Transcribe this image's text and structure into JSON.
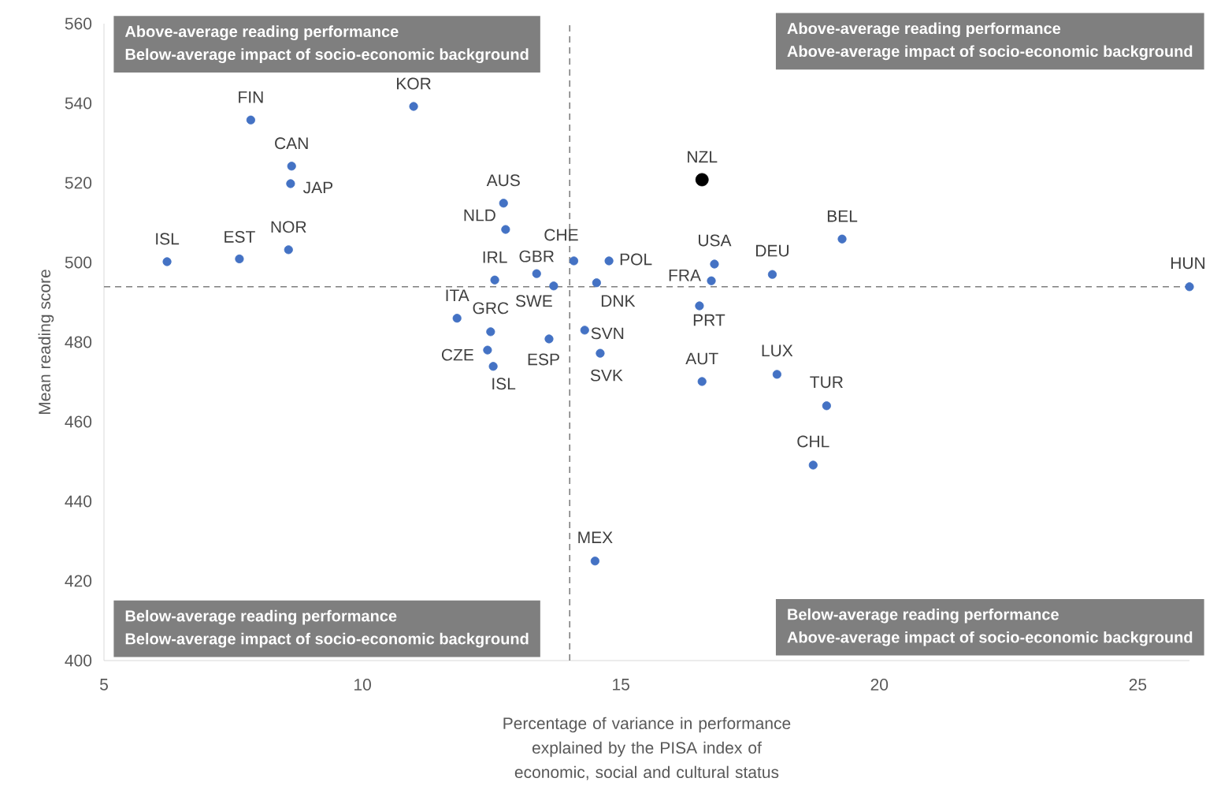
{
  "chart_data": {
    "type": "scatter",
    "xlabel": "Percentage of variance in performance explained by the PISA index of economic, social and cultural status",
    "ylabel": "Mean reading score",
    "xlim": [
      5,
      26
    ],
    "xticks": [
      5,
      10,
      15,
      20,
      25
    ],
    "ylim": [
      400,
      560
    ],
    "yticks": [
      400,
      420,
      440,
      460,
      480,
      500,
      520,
      540,
      560
    ],
    "grid": false,
    "marker": "circle",
    "series": [
      {
        "color": "#4472c4",
        "x": [
          7.84,
          10.99,
          8.63,
          8.61,
          12.73,
          12.77,
          6.22,
          7.62,
          8.57,
          14.09,
          14.77,
          12.56,
          13.37,
          13.7,
          14.53,
          11.83,
          12.48,
          12.42,
          12.53,
          13.61,
          14.3,
          14.6,
          16.81,
          16.75,
          16.52,
          17.93,
          19.28,
          26.0,
          16.57,
          18.02,
          18.98,
          18.72,
          14.5
        ],
        "values": [
          535.8,
          539.2,
          524.2,
          519.8,
          514.9,
          508.3,
          500.2,
          500.9,
          503.2,
          500.4,
          500.4,
          495.6,
          497.2,
          494.1,
          494.9,
          486.0,
          482.6,
          478.0,
          473.9,
          480.8,
          483.0,
          477.2,
          499.6,
          495.4,
          489.1,
          497.0,
          505.9,
          493.9,
          470.1,
          471.9,
          464.0,
          449.1,
          425.0
        ]
      },
      {
        "color": "#000000",
        "x": [
          16.57
        ],
        "values": [
          520.8
        ]
      }
    ],
    "ref_lines": [
      {
        "axis": "x",
        "value": 14.01,
        "color": "#7f7f7f",
        "line_style": "dashed"
      },
      {
        "axis": "y",
        "value": 493.9,
        "color": "#7f7f7f",
        "line_style": "dashed"
      }
    ],
    "annotations": [
      "Above-average reading performance",
      "Below-average impact of socio-economic background",
      "Above-average reading performance",
      "Above-average impact of socio-economic background",
      "Below-average reading performance",
      "Below-average impact of socio-economic background",
      "Below-average reading performance",
      "Above-average impact of socio-economic background",
      {
        "text": "FIN",
        "x": 7.84,
        "y": 535.8
      },
      {
        "text": "KOR",
        "x": 10.99,
        "y": 539.2
      },
      {
        "text": "CAN",
        "x": 8.63,
        "y": 524.2
      },
      {
        "text": "JAP",
        "x": 8.61,
        "y": 519.8
      },
      {
        "text": "AUS",
        "x": 12.73,
        "y": 514.9
      },
      {
        "text": "NLD",
        "x": 12.77,
        "y": 508.3
      },
      {
        "text": "ISL",
        "x": 6.22,
        "y": 500.2
      },
      {
        "text": "EST",
        "x": 7.62,
        "y": 500.9
      },
      {
        "text": "NOR",
        "x": 8.57,
        "y": 503.2
      },
      {
        "text": "CHE",
        "x": 14.09,
        "y": 500.4
      },
      {
        "text": "POL",
        "x": 14.77,
        "y": 500.4
      },
      {
        "text": "IRL",
        "x": 12.56,
        "y": 495.6
      },
      {
        "text": "GBR",
        "x": 13.37,
        "y": 497.2
      },
      {
        "text": "SWE",
        "x": 13.7,
        "y": 494.1
      },
      {
        "text": "DNK",
        "x": 14.53,
        "y": 494.9
      },
      {
        "text": "ITA",
        "x": 11.83,
        "y": 486.0
      },
      {
        "text": "GRC",
        "x": 12.48,
        "y": 482.6
      },
      {
        "text": "CZE",
        "x": 12.42,
        "y": 478.0
      },
      {
        "text": "ISL",
        "x": 12.53,
        "y": 473.9
      },
      {
        "text": "ESP",
        "x": 13.61,
        "y": 480.8
      },
      {
        "text": "SVN",
        "x": 14.3,
        "y": 483.0
      },
      {
        "text": "SVK",
        "x": 14.6,
        "y": 477.2
      },
      {
        "text": "USA",
        "x": 16.81,
        "y": 499.6
      },
      {
        "text": "FRA",
        "x": 16.75,
        "y": 495.4
      },
      {
        "text": "PRT",
        "x": 16.52,
        "y": 489.1
      },
      {
        "text": "DEU",
        "x": 17.93,
        "y": 497.0
      },
      {
        "text": "BEL",
        "x": 19.28,
        "y": 505.9
      },
      {
        "text": "HUN",
        "x": 26.0,
        "y": 493.9
      },
      {
        "text": "AUT",
        "x": 16.57,
        "y": 470.1
      },
      {
        "text": "LUX",
        "x": 18.02,
        "y": 471.9
      },
      {
        "text": "TUR",
        "x": 18.98,
        "y": 464.0
      },
      {
        "text": "CHL",
        "x": 18.72,
        "y": 449.1
      },
      {
        "text": "MEX",
        "x": 14.5,
        "y": 425.0
      },
      {
        "text": "NZL",
        "x": 16.57,
        "y": 520.8
      }
    ]
  }
}
